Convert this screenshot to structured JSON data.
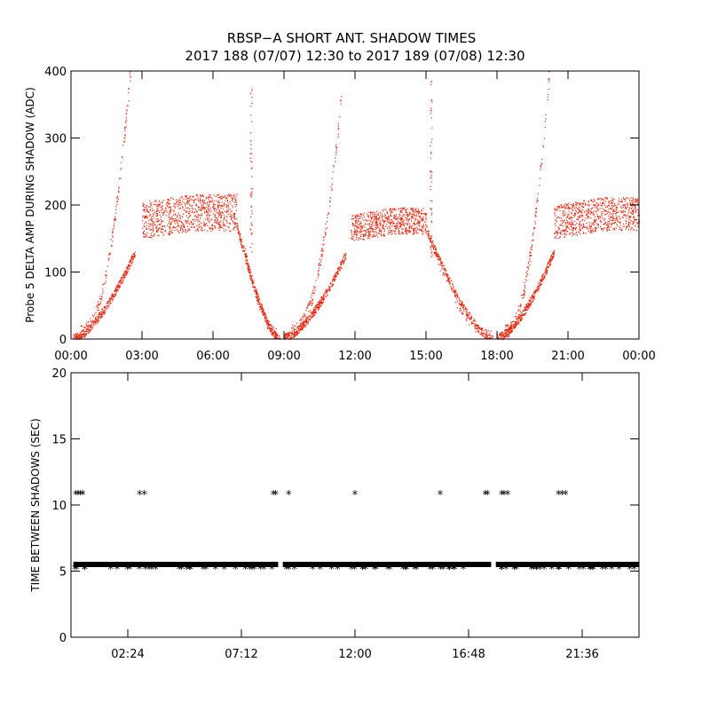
{
  "title": {
    "line1": "RBSP−A SHORT ANT. SHADOW TIMES",
    "line2": "2017 188 (07/07) 12:30 to 2017 189 (07/08) 12:30"
  },
  "colors": {
    "dots": "#e8250c",
    "axis": "#000000",
    "stars": "#000000"
  },
  "chart_data": [
    {
      "type": "scatter",
      "ylabel": "Probe 5 DELTA AMP DURING SHADOW (ADC)",
      "xlim": [
        0,
        24
      ],
      "ylim": [
        0,
        400
      ],
      "x_tick_values": [
        0,
        3,
        6,
        9,
        12,
        15,
        18,
        21,
        24
      ],
      "x_tick_labels": [
        "00:00",
        "03:00",
        "06:00",
        "09:00",
        "12:00",
        "15:00",
        "18:00",
        "21:00",
        "00:00"
      ],
      "y_tick_values": [
        0,
        100,
        200,
        300,
        400
      ],
      "y_tick_labels": [
        "0",
        "100",
        "200",
        "300",
        "400"
      ],
      "grid": false,
      "cycles": [
        {
          "start": 0.1,
          "spike_end": 2.5,
          "peak": 400,
          "plateau_start": 3.0,
          "plateau_end": 7.0,
          "plateau_low": 150,
          "plateau_high": 205,
          "end": 8.8
        },
        {
          "start": 9.0,
          "spike_end": 11.4,
          "peak": 360,
          "plateau_start": 11.8,
          "plateau_end": 15.0,
          "plateau_low": 145,
          "plateau_high": 185,
          "end": 17.8
        },
        {
          "start": 18.0,
          "spike_end": 20.2,
          "peak": 400,
          "plateau_start": 20.4,
          "plateau_end": 24.0,
          "plateau_low": 150,
          "plateau_high": 200,
          "end": 24.0
        }
      ],
      "spikes": [
        {
          "x": 7.6,
          "y": 375
        },
        {
          "x": 15.2,
          "y": 395
        }
      ]
    },
    {
      "type": "scatter",
      "ylabel": "TIME BETWEEN SHADOWS (SEC)",
      "xlim": [
        0,
        24
      ],
      "ylim": [
        0,
        20
      ],
      "x_tick_values": [
        2.4,
        7.2,
        12.0,
        16.8,
        21.6
      ],
      "x_tick_labels": [
        "02:24",
        "07:12",
        "12:00",
        "16:48",
        "21:36"
      ],
      "y_tick_values": [
        0,
        5,
        10,
        15,
        20
      ],
      "y_tick_labels": [
        "0",
        "5",
        "10",
        "15",
        "20"
      ],
      "grid": false,
      "baseline": 5.5,
      "baseline_segments": [
        [
          0.1,
          8.75
        ],
        [
          8.95,
          17.75
        ],
        [
          17.95,
          24.0
        ]
      ],
      "gap_points": [
        {
          "x": 0.2,
          "y": 11.0
        },
        {
          "x": 0.3,
          "y": 11.0
        },
        {
          "x": 0.4,
          "y": 11.0
        },
        {
          "x": 0.5,
          "y": 11.0
        },
        {
          "x": 2.9,
          "y": 11.0
        },
        {
          "x": 3.1,
          "y": 11.0
        },
        {
          "x": 8.55,
          "y": 11.0
        },
        {
          "x": 8.65,
          "y": 11.0
        },
        {
          "x": 9.2,
          "y": 11.0
        },
        {
          "x": 12.0,
          "y": 11.0
        },
        {
          "x": 15.6,
          "y": 11.0
        },
        {
          "x": 17.5,
          "y": 11.0
        },
        {
          "x": 17.6,
          "y": 11.0
        },
        {
          "x": 18.2,
          "y": 11.0
        },
        {
          "x": 18.3,
          "y": 11.0
        },
        {
          "x": 18.45,
          "y": 11.0
        },
        {
          "x": 20.6,
          "y": 11.0
        },
        {
          "x": 20.75,
          "y": 11.0
        },
        {
          "x": 20.9,
          "y": 11.0
        }
      ]
    }
  ]
}
